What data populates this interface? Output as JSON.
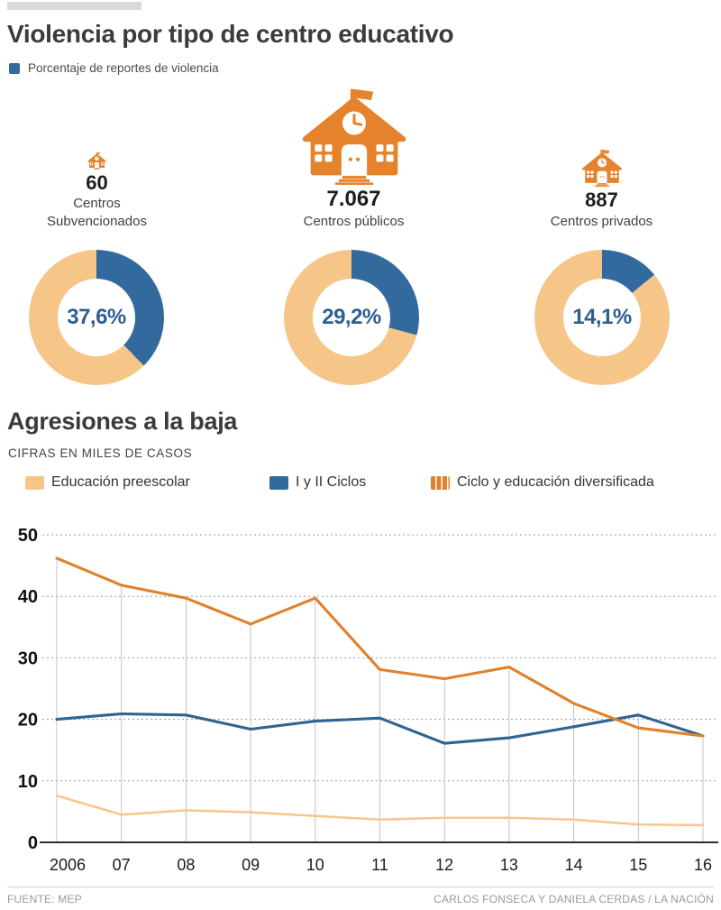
{
  "header": {
    "title": "Violencia por tipo de centro educativo",
    "legend": {
      "label": "Porcentaje de reportes de violencia",
      "color": "#336a9e"
    }
  },
  "centers": [
    {
      "count": "60",
      "label": "Centros\nSubvencionados"
    },
    {
      "count": "7.067",
      "label": "Centros públicos"
    },
    {
      "count": "887",
      "label": "Centros privados"
    }
  ],
  "section2": {
    "title": "Agresiones a la baja",
    "subtitle": "CIFRAS EN MILES DE CASOS",
    "legend": [
      {
        "label": "Educación preescolar",
        "color": "#f6c689",
        "swatch": "solid"
      },
      {
        "label": "I y II Ciclos",
        "color": "#336a9e",
        "swatch": "solid"
      },
      {
        "label": "Ciclo y educación diversificada",
        "color": "#e0812c",
        "swatch": "striped"
      }
    ]
  },
  "chart_data": [
    {
      "type": "pie",
      "style": "donut",
      "title": "Centros Subvencionados",
      "values": [
        37.6,
        62.4
      ],
      "colors": [
        "#336a9e",
        "#f6c689"
      ],
      "center_label": "37,6%"
    },
    {
      "type": "pie",
      "style": "donut",
      "title": "Centros públicos",
      "values": [
        29.2,
        70.8
      ],
      "colors": [
        "#336a9e",
        "#f6c689"
      ],
      "center_label": "29,2%"
    },
    {
      "type": "pie",
      "style": "donut",
      "title": "Centros privados",
      "values": [
        14.1,
        85.9
      ],
      "colors": [
        "#336a9e",
        "#f6c689"
      ],
      "center_label": "14,1%"
    },
    {
      "type": "line",
      "title": "Agresiones a la baja",
      "units": "miles de casos",
      "categories": [
        "2006",
        "07",
        "08",
        "09",
        "10",
        "11",
        "12",
        "13",
        "14",
        "15",
        "16"
      ],
      "series": [
        {
          "name": "Educación preescolar",
          "color": "#f6c689",
          "values": [
            7.6,
            4.5,
            5.2,
            4.9,
            4.3,
            3.7,
            4.0,
            4.0,
            3.7,
            2.9,
            2.8
          ]
        },
        {
          "name": "I y II Ciclos",
          "color": "#2f6492",
          "values": [
            20.0,
            20.9,
            20.7,
            18.4,
            19.7,
            20.2,
            16.1,
            17.0,
            18.8,
            20.7,
            17.3
          ]
        },
        {
          "name": "Ciclo y educación diversificada",
          "color": "#e0812c",
          "values": [
            46.2,
            41.8,
            39.7,
            35.5,
            39.7,
            28.1,
            26.6,
            28.5,
            22.6,
            18.6,
            17.3
          ]
        }
      ],
      "ylim": [
        0,
        50
      ],
      "yticks": [
        0,
        10,
        20,
        30,
        40,
        50
      ],
      "grid": "horizontal dotted lines; vertical gray drop lines per year",
      "legend_position": "top"
    }
  ],
  "colors": {
    "icon_orange": "#e5832c",
    "accent_blue": "#336a9e"
  },
  "footer": {
    "source": "FUENTE: MEP",
    "credit": "CARLOS FONSECA Y DANIELA CERDAS / LA NACIÓN"
  }
}
